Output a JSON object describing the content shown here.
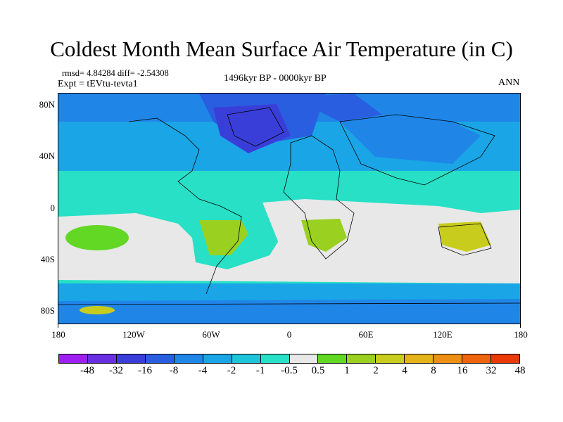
{
  "title": "Coldest Month Mean Surface Air Temperature (in C)",
  "stats": "rmsd= 4.84284 diff= -2.54308",
  "experiment": "Expt = tEVtu-tevta1",
  "period": "1496kyr BP - 0000kyr BP",
  "season": "ANN",
  "latitude_labels": [
    "80N",
    "40N",
    "0",
    "40S",
    "80S"
  ],
  "longitude_labels": [
    "180",
    "120W",
    "60W",
    "0",
    "60E",
    "120E",
    "180"
  ],
  "colorbar": {
    "labels": [
      "-48",
      "-32",
      "-16",
      "-8",
      "-4",
      "-2",
      "-1",
      "-0.5",
      "0.5",
      "1",
      "2",
      "4",
      "8",
      "16",
      "32",
      "48"
    ],
    "colors": [
      "#9f1ff0",
      "#6a2fe0",
      "#3a3ed8",
      "#2a5ee0",
      "#1f86e8",
      "#1aa6e6",
      "#1ec4d9",
      "#27e0c6",
      "#e8e8e8",
      "#62d825",
      "#9ad01f",
      "#c8cc1c",
      "#e4b318",
      "#ec8f12",
      "#ee640e",
      "#ea3a08"
    ]
  }
}
